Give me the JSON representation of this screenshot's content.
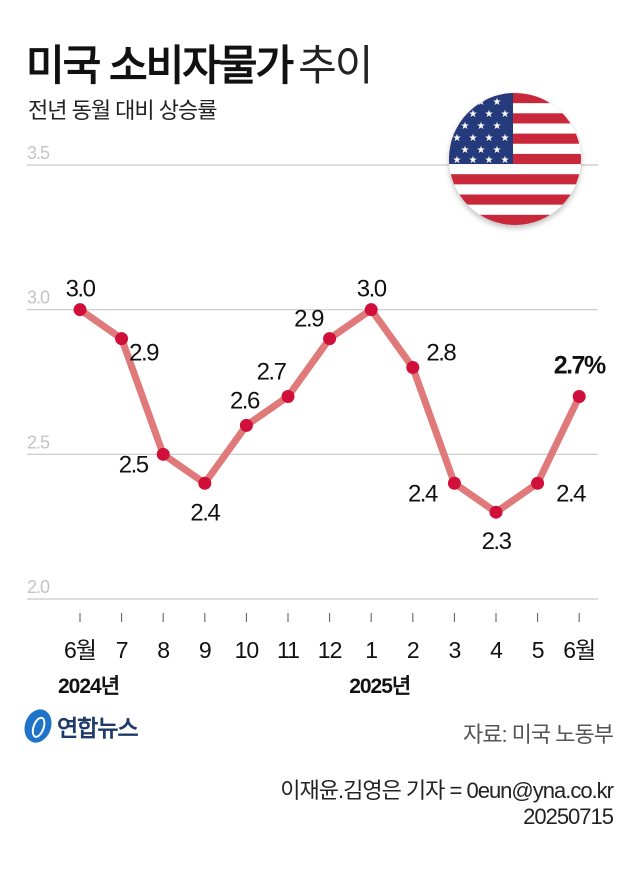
{
  "header": {
    "title_bold": "미국 소비자물가",
    "title_light": "추이",
    "subtitle": "전년 동월 대비 상승률"
  },
  "flag": {
    "icon": "us-flag-icon"
  },
  "chart_data": {
    "type": "line",
    "title": "미국 소비자물가 추이",
    "subtitle": "전년 동월 대비 상승률",
    "xlabel": "",
    "ylabel": "",
    "ylim": [
      2.0,
      3.5
    ],
    "yticks": [
      "2.0",
      "2.5",
      "3.0",
      "3.5"
    ],
    "grid": true,
    "categories": [
      "6월",
      "7",
      "8",
      "9",
      "10",
      "11",
      "12",
      "1",
      "2",
      "3",
      "4",
      "5",
      "6월"
    ],
    "year_labels": [
      {
        "label": "2024년",
        "index": 0
      },
      {
        "label": "2025년",
        "index": 7
      }
    ],
    "series": [
      {
        "name": "미국 소비자물가 상승률",
        "values": [
          3.0,
          2.9,
          2.5,
          2.4,
          2.6,
          2.7,
          2.9,
          3.0,
          2.8,
          2.4,
          2.3,
          2.4,
          2.7
        ],
        "labels": [
          "3.0",
          "2.9",
          "2.5",
          "2.4",
          "2.6",
          "2.7",
          "2.9",
          "3.0",
          "2.8",
          "2.4",
          "2.3",
          "2.4",
          "2.7%"
        ],
        "line_color": "#e07a7a",
        "marker_color": "#d0103a"
      }
    ]
  },
  "footer": {
    "logo_text": "연합뉴스",
    "source": "자료: 미국 노동부",
    "credit": "이재윤.김영은 기자 = 0eun@yna.co.kr",
    "date": "20250715"
  }
}
